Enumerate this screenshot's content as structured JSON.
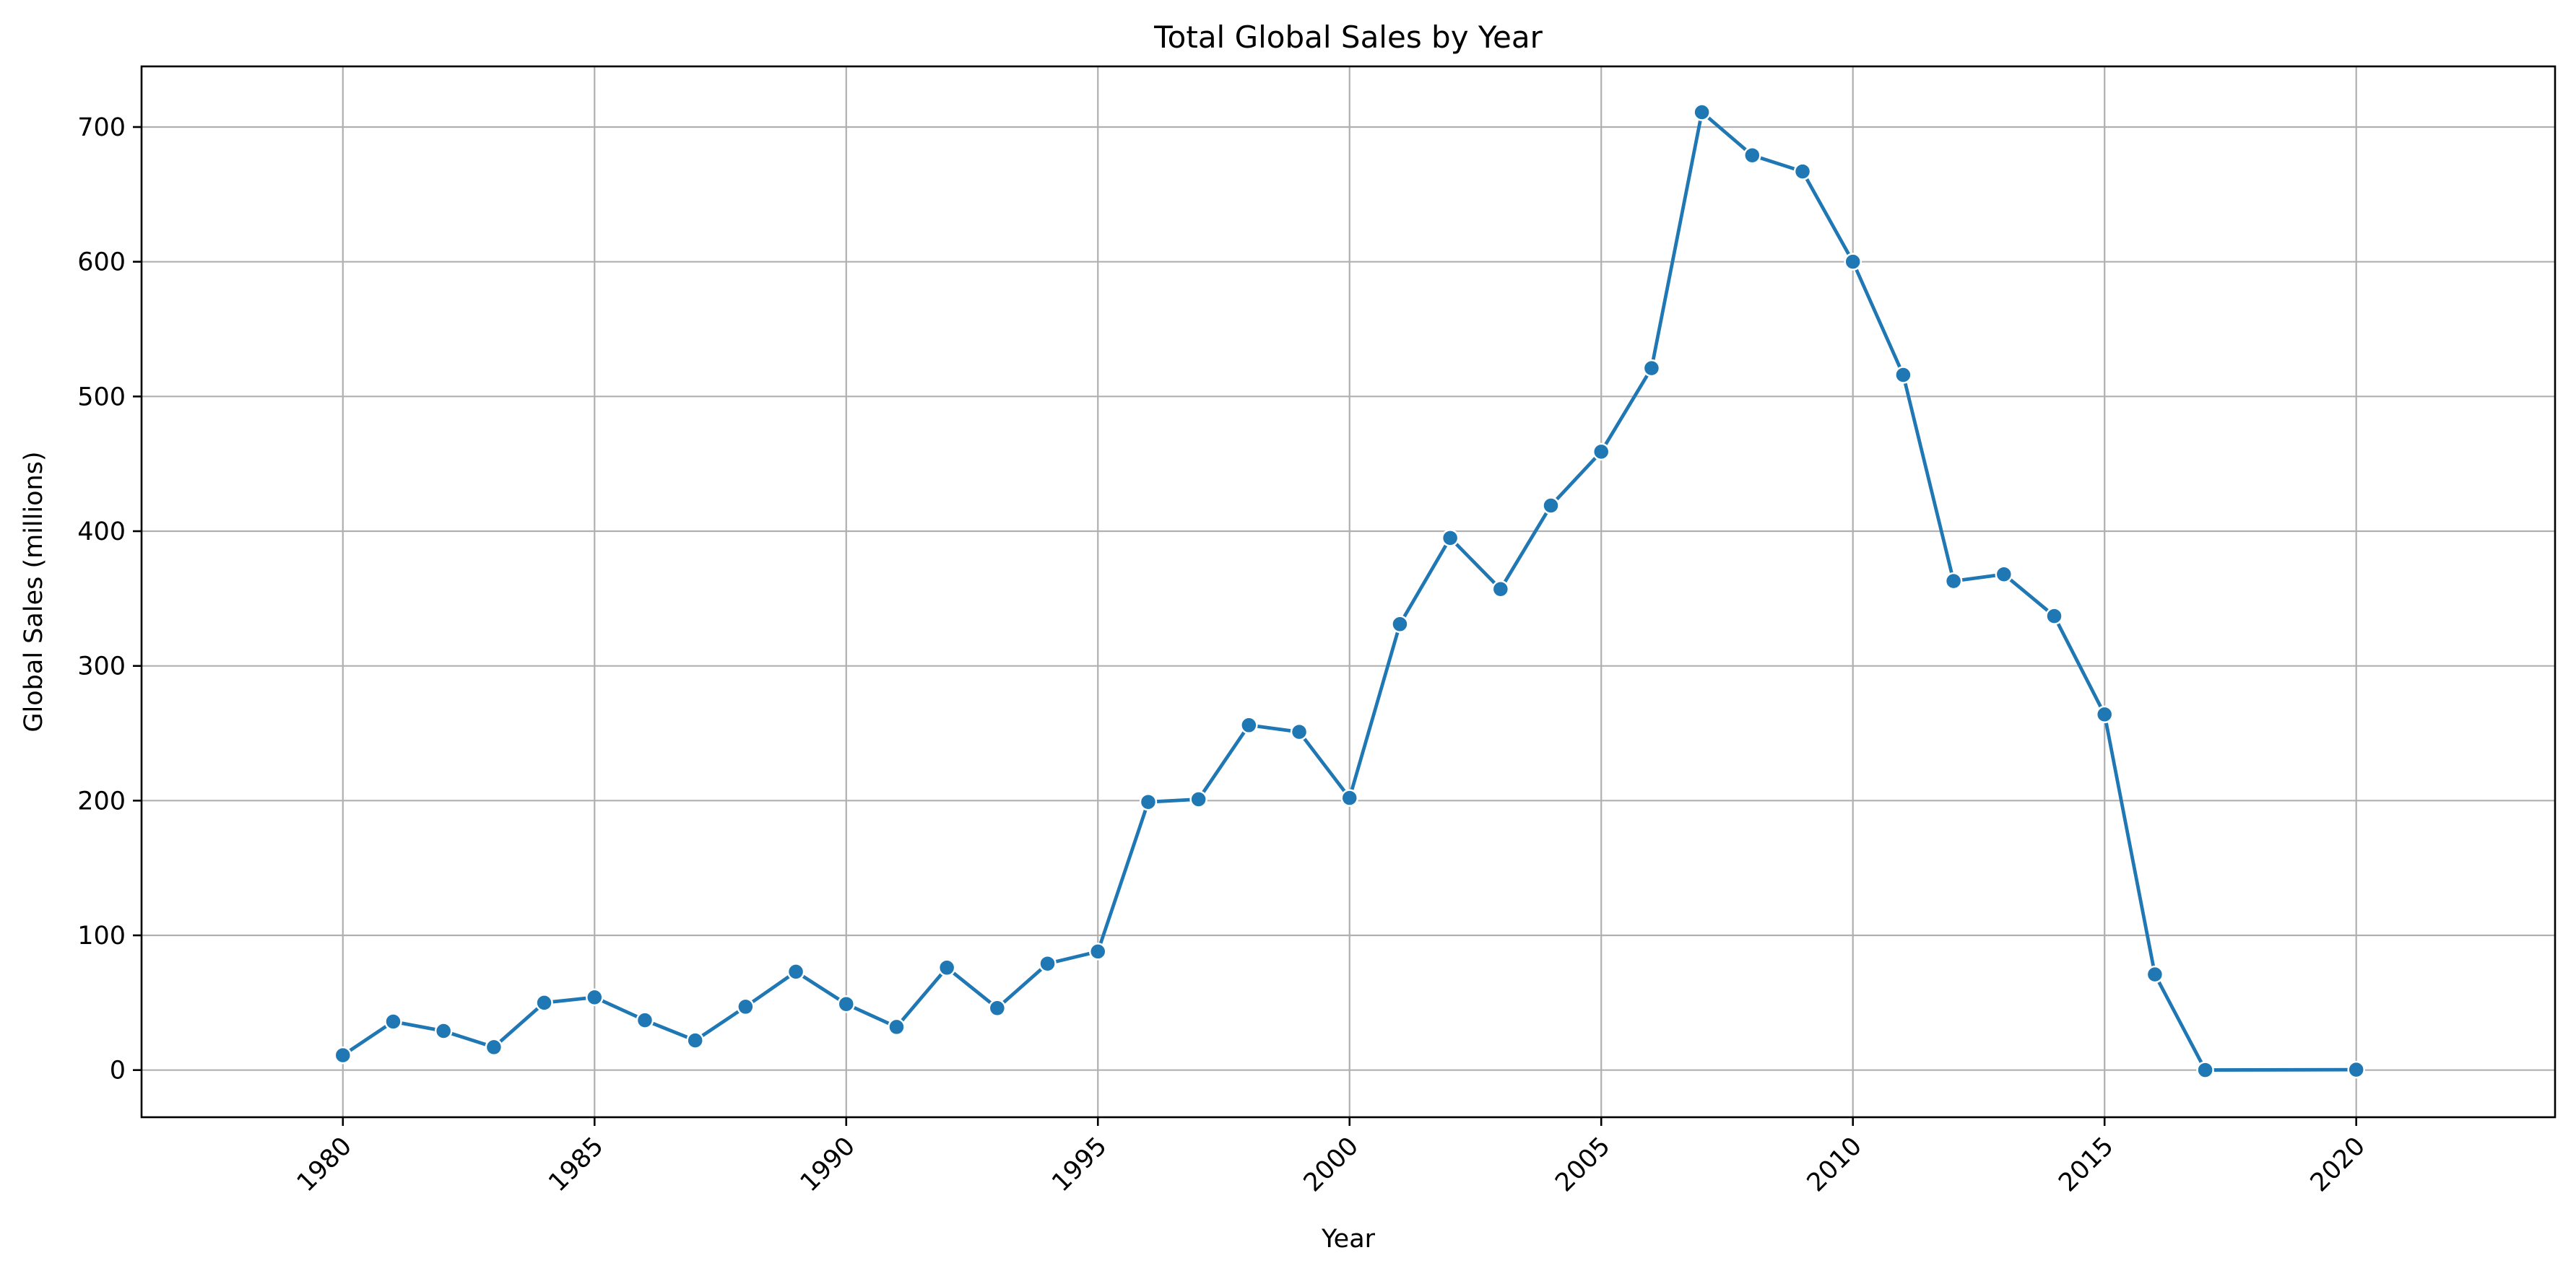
{
  "chart_data": {
    "type": "line",
    "title": "Total Global Sales by Year",
    "xlabel": "Year",
    "ylabel": "Global Sales (millions)",
    "xlim": [
      1976,
      2020
    ],
    "ylim": [
      -35,
      745
    ],
    "xticks": [
      1980,
      1985,
      1990,
      1995,
      2000,
      2005,
      2010,
      2015,
      2020
    ],
    "yticks": [
      0,
      100,
      200,
      300,
      400,
      500,
      600,
      700
    ],
    "grid": true,
    "color": "#1f77b4",
    "series": [
      {
        "x": [
          1980,
          1981,
          1982,
          1983,
          1984,
          1985,
          1986,
          1987,
          1988,
          1989,
          1990,
          1991,
          1992,
          1993,
          1994,
          1995,
          1996,
          1997,
          1998,
          1999,
          2000,
          2001,
          2002,
          2003,
          2004,
          2005,
          2006,
          2007,
          2008,
          2009,
          2010,
          2011,
          2012,
          2013,
          2014,
          2015,
          2016,
          2017,
          2020
        ],
        "values": [
          11,
          36,
          29,
          17,
          50,
          54,
          37,
          22,
          47,
          73,
          49,
          32,
          76,
          46,
          79,
          88,
          199,
          201,
          256,
          251,
          202,
          331,
          395,
          357,
          419,
          459,
          521,
          711,
          679,
          667,
          600,
          516,
          363,
          368,
          337,
          264,
          71,
          0.05,
          0.3
        ]
      }
    ]
  }
}
